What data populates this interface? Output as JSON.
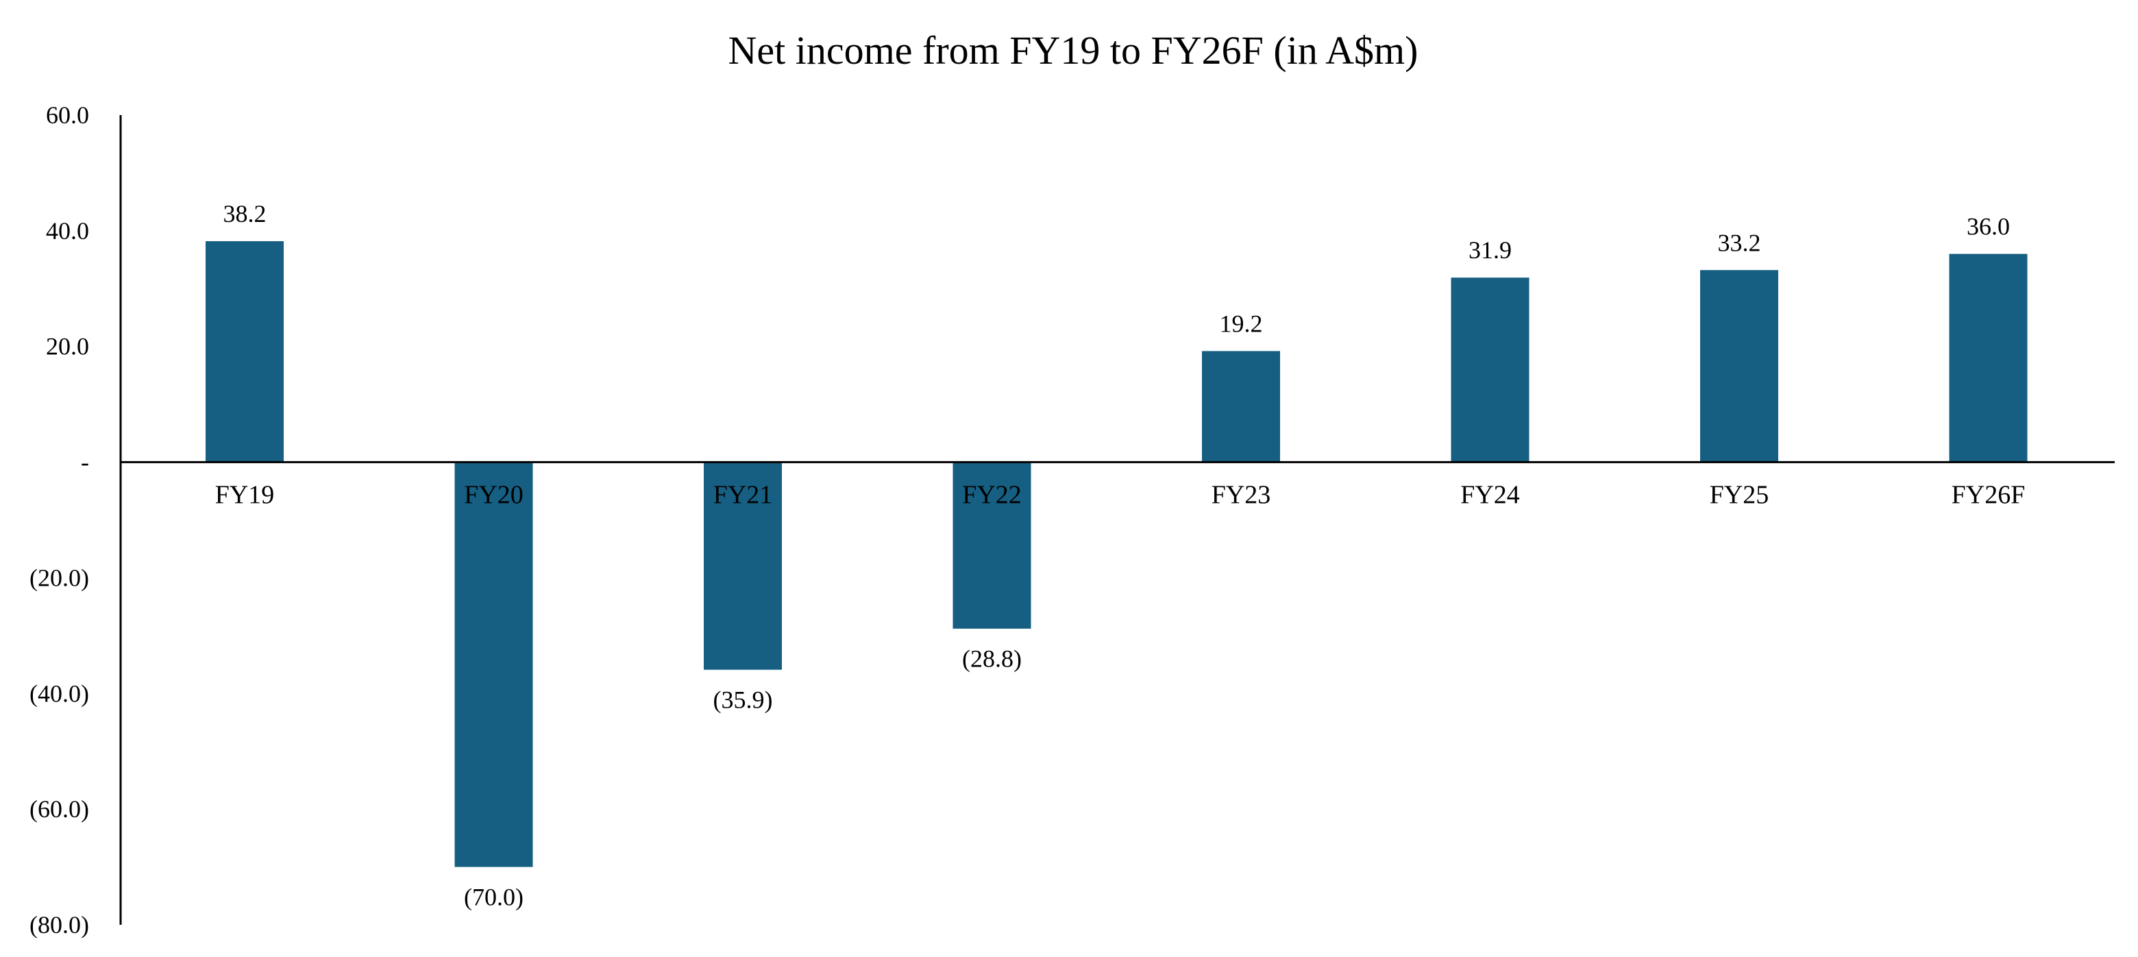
{
  "chart_data": {
    "type": "bar",
    "title": "Net income from FY19 to FY26F (in A$m)",
    "xlabel": "",
    "ylabel": "",
    "categories": [
      "FY19",
      "FY20",
      "FY21",
      "FY22",
      "FY23",
      "FY24",
      "FY25",
      "FY26F"
    ],
    "values": [
      38.2,
      -70.0,
      -35.9,
      -28.8,
      19.2,
      31.9,
      33.2,
      36.0
    ],
    "data_labels": [
      "38.2",
      "(70.0)",
      "(35.9)",
      "(28.8)",
      "19.2",
      "31.9",
      "33.2",
      "36.0"
    ],
    "ylim": [
      -80,
      60
    ],
    "y_ticks": [
      60,
      40,
      20,
      0,
      -20,
      -40,
      -60,
      -80
    ],
    "y_tick_labels": [
      "60.0",
      "40.0",
      "20.0",
      "-",
      "(20.0)",
      "(40.0)",
      "(60.0)",
      "(80.0)"
    ],
    "grid": false,
    "legend": "none",
    "colors": {
      "bar": "#165F82",
      "axis": "#000000"
    }
  }
}
